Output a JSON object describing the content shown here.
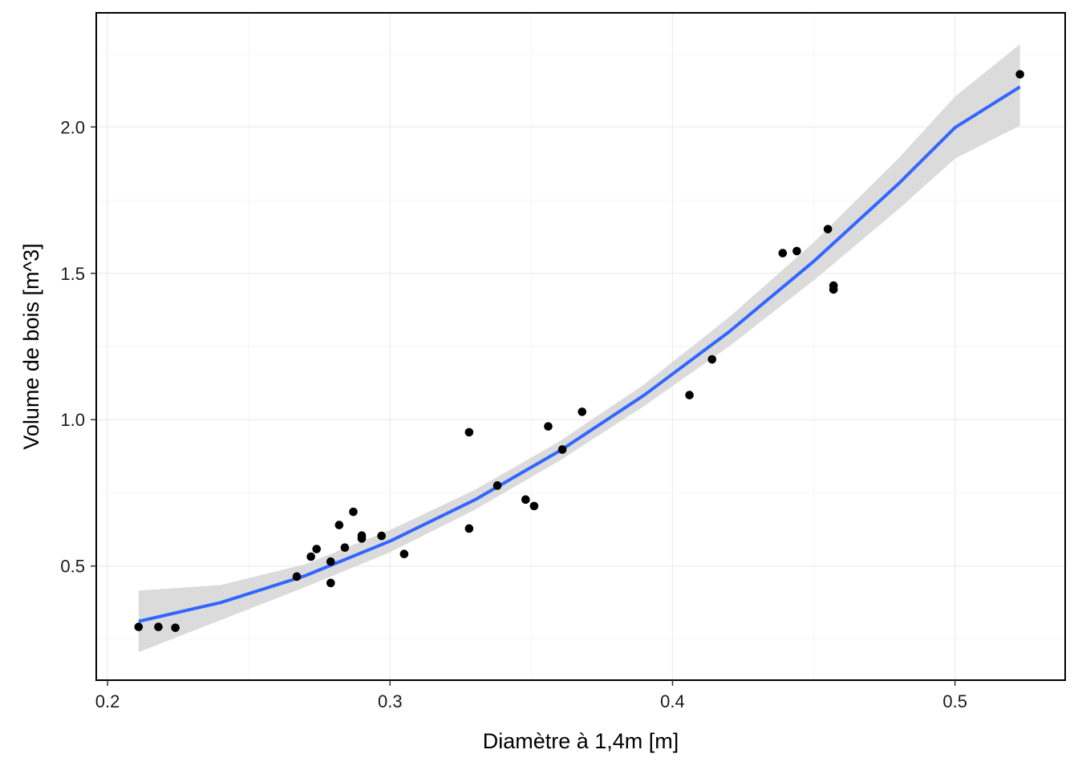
{
  "chart_data": {
    "type": "scatter",
    "title": "",
    "xlabel": "Diamètre à 1,4m  [m]",
    "ylabel": "Volume de bois  [m^3]",
    "xlim": [
      0.196,
      0.539
    ],
    "ylim": [
      0.11,
      2.39
    ],
    "x_ticks": [
      0.2,
      0.3,
      0.4,
      0.5
    ],
    "x_tick_labels": [
      "0.2",
      "0.3",
      "0.4",
      "0.5"
    ],
    "y_ticks": [
      0.5,
      1.0,
      1.5,
      2.0
    ],
    "y_tick_labels": [
      "0.5",
      "1.0",
      "1.5",
      "2.0"
    ],
    "grid": true,
    "legend": "none",
    "points": {
      "x": [
        0.211,
        0.218,
        0.224,
        0.267,
        0.272,
        0.274,
        0.279,
        0.279,
        0.282,
        0.284,
        0.287,
        0.29,
        0.29,
        0.297,
        0.305,
        0.328,
        0.328,
        0.338,
        0.348,
        0.351,
        0.356,
        0.361,
        0.368,
        0.406,
        0.414,
        0.439,
        0.444,
        0.455,
        0.457,
        0.457,
        0.523
      ],
      "y": [
        0.292,
        0.292,
        0.289,
        0.464,
        0.532,
        0.558,
        0.515,
        0.442,
        0.64,
        0.563,
        0.685,
        0.604,
        0.594,
        0.603,
        0.541,
        0.957,
        0.628,
        0.775,
        0.727,
        0.705,
        0.977,
        0.898,
        1.027,
        1.084,
        1.206,
        1.569,
        1.576,
        1.651,
        1.458,
        1.445,
        2.18
      ]
    },
    "fit": {
      "method": "quadratic",
      "x": [
        0.211,
        0.24,
        0.27,
        0.3,
        0.33,
        0.36,
        0.39,
        0.42,
        0.45,
        0.48,
        0.5,
        0.523
      ],
      "y": [
        0.311,
        0.375,
        0.467,
        0.585,
        0.726,
        0.893,
        1.084,
        1.3,
        1.541,
        1.806,
        1.998,
        2.137
      ],
      "lower": [
        0.206,
        0.315,
        0.428,
        0.547,
        0.692,
        0.86,
        1.047,
        1.25,
        1.476,
        1.719,
        1.892,
        2.005
      ],
      "upper": [
        0.416,
        0.435,
        0.506,
        0.623,
        0.76,
        0.926,
        1.121,
        1.35,
        1.606,
        1.893,
        2.104,
        2.283
      ]
    },
    "colors": {
      "points": "#000000",
      "fit_line": "#3366FF",
      "ribbon": "#D9D9D9",
      "grid_major": "#EBEBEB",
      "grid_minor": "#F5F5F5",
      "frame": "#000000"
    }
  }
}
